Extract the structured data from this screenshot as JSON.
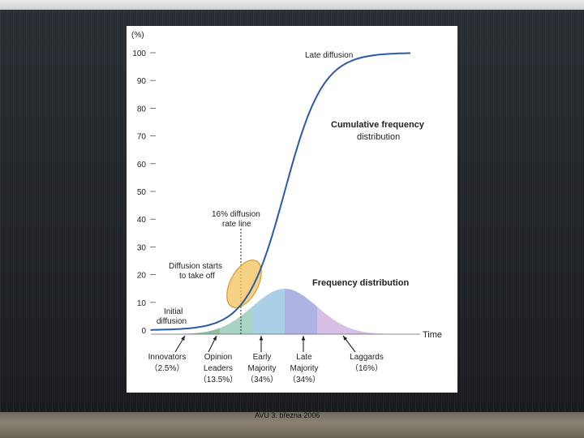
{
  "footer": "AVU 3. března 2006",
  "chart_data": {
    "type": "line",
    "x_label": "Time",
    "y_unit": "(%)",
    "y_ticks": [
      0,
      10,
      20,
      30,
      40,
      50,
      60,
      70,
      80,
      90,
      100
    ],
    "ylim": [
      0,
      100
    ],
    "series": [
      {
        "name": "Cumulative frequency distribution",
        "label": "Late diffusion",
        "color": "#2b5aa8"
      },
      {
        "name": "Frequency distribution",
        "color": "#9fc6e0"
      }
    ],
    "annotations": {
      "late_diffusion": "Late diffusion",
      "cumulative_l1": "Cumulative frequency",
      "cumulative_l2": "distribution",
      "rate_line_l1": "16% diffusion",
      "rate_line_l2": "rate line",
      "takeoff_l1": "Diffusion starts",
      "takeoff_l2": "to take off",
      "frequency": "Frequency distribution",
      "initial_l1": "Initial",
      "initial_l2": "diffusion"
    },
    "rate_line_value": 16,
    "adopter_categories": [
      {
        "l1": "Innovators",
        "l2": "",
        "pct": "（2.5%）",
        "share": 2.5,
        "color": "#8fbf9d"
      },
      {
        "l1": "Opinion",
        "l2": "Leaders",
        "pct": "（13.5%）",
        "share": 13.5,
        "color": "#a9d3c5"
      },
      {
        "l1": "Early",
        "l2": "Majority",
        "pct": "（34%）",
        "share": 34,
        "color": "#a9d0e6"
      },
      {
        "l1": "Late",
        "l2": "Majority",
        "pct": "（34%）",
        "share": 34,
        "color": "#aeb3e3"
      },
      {
        "l1": "Laggards",
        "l2": "",
        "pct": "（16%）",
        "share": 16,
        "color": "#d7bfe6"
      }
    ]
  }
}
